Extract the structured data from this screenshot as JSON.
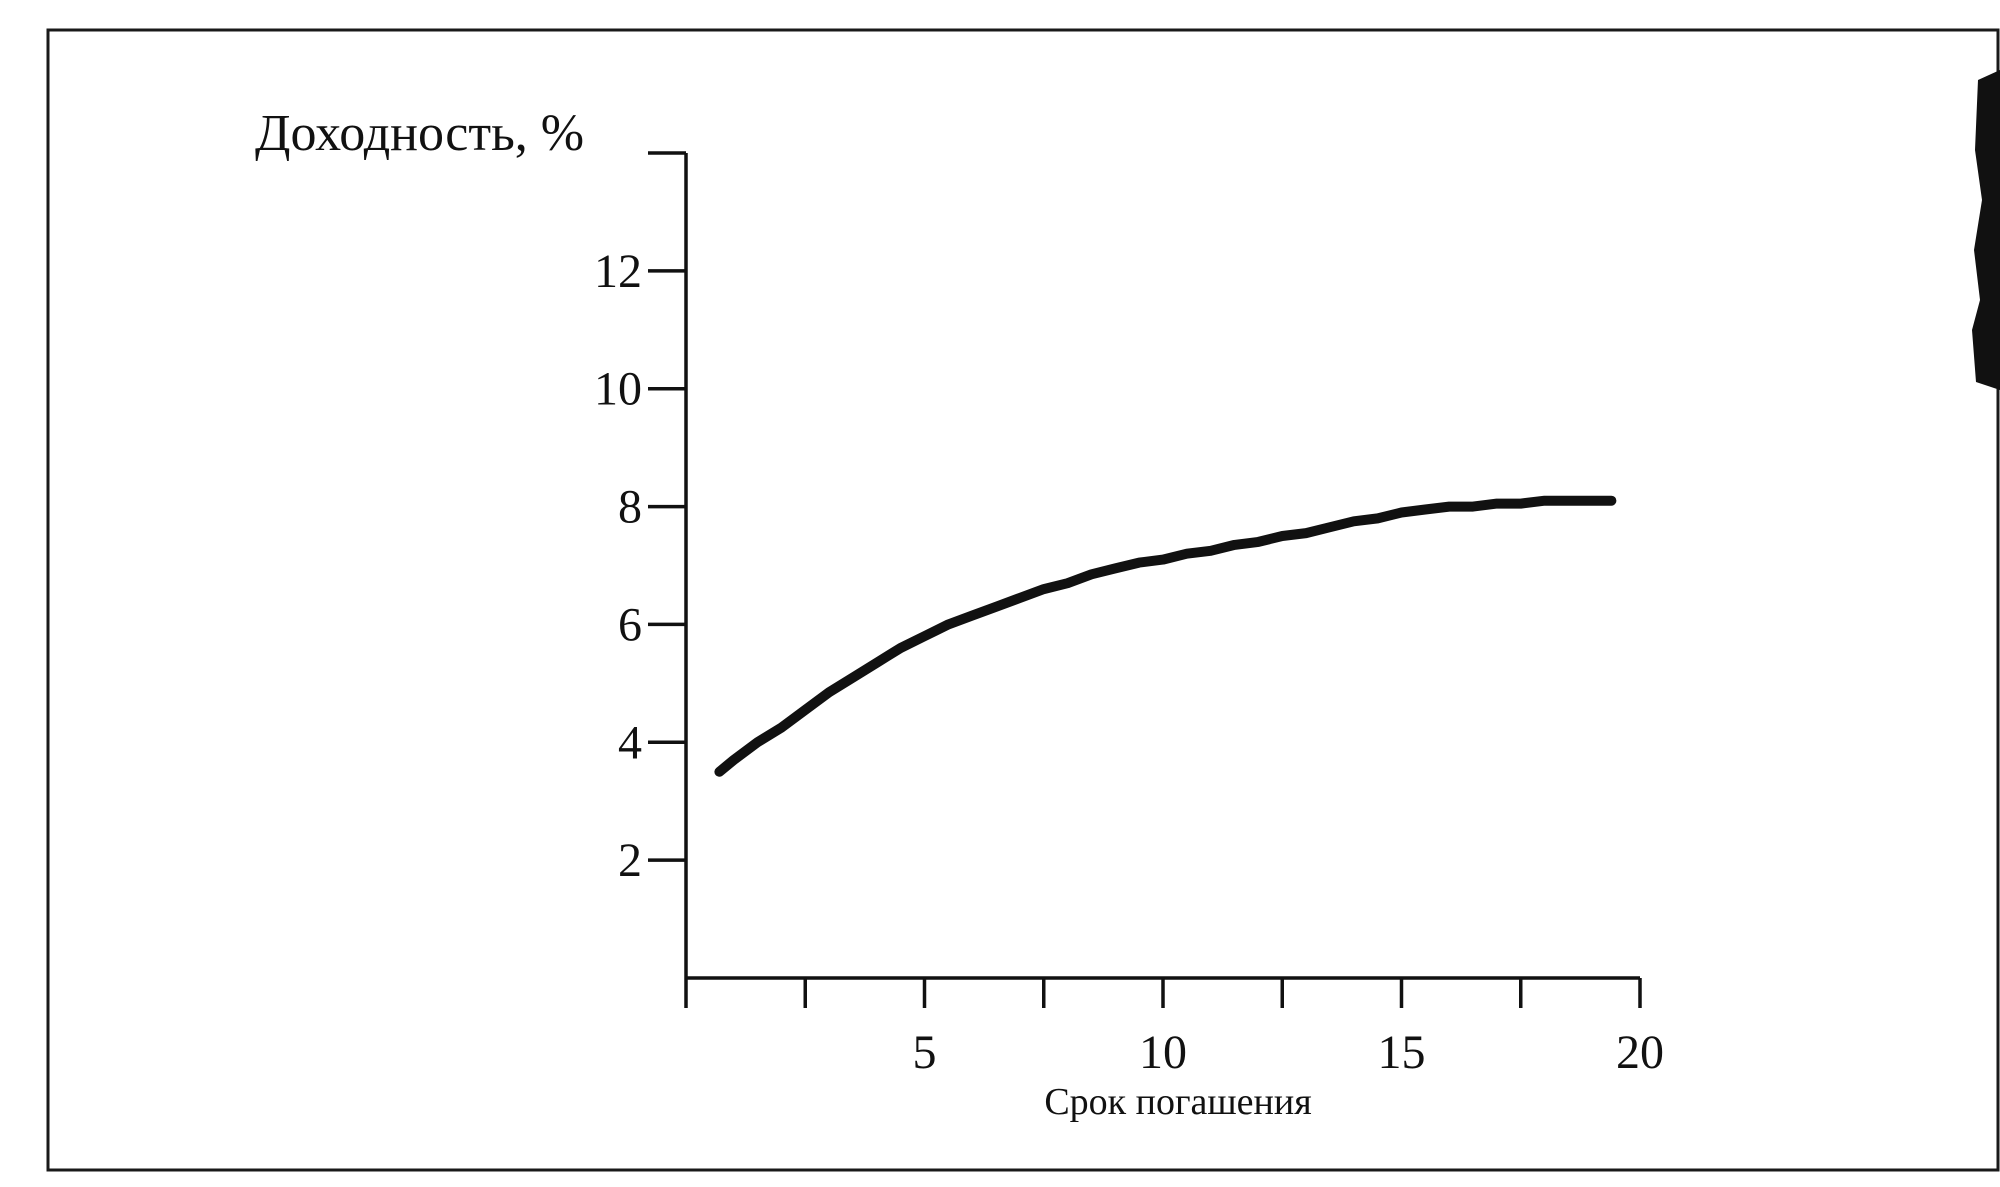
{
  "chart_data": {
    "type": "line",
    "ylabel": "Доходность, %",
    "xlabel": "Срок погашения",
    "xlim": [
      0,
      20
    ],
    "ylim": [
      0,
      14
    ],
    "x_ticks": [
      0,
      2.5,
      5,
      7.5,
      10,
      12.5,
      15,
      17.5,
      20
    ],
    "x_tick_labels": [
      {
        "value": 5,
        "label": "5"
      },
      {
        "value": 10,
        "label": "10"
      },
      {
        "value": 15,
        "label": "15"
      },
      {
        "value": 20,
        "label": "20"
      }
    ],
    "y_ticks": [
      2,
      4,
      6,
      8,
      10,
      12,
      14
    ],
    "y_tick_labels": [
      {
        "value": 2,
        "label": "2"
      },
      {
        "value": 4,
        "label": "4"
      },
      {
        "value": 6,
        "label": "6"
      },
      {
        "value": 8,
        "label": "8"
      },
      {
        "value": 10,
        "label": "10"
      },
      {
        "value": 12,
        "label": "12"
      }
    ],
    "grid": false,
    "series": [
      {
        "x": [
          0.7,
          1,
          1.5,
          2,
          2.5,
          3,
          3.5,
          4,
          4.5,
          5,
          5.5,
          6,
          6.5,
          7,
          7.5,
          8,
          8.5,
          9,
          9.5,
          10,
          10.5,
          11,
          11.5,
          12,
          12.5,
          13,
          13.5,
          14,
          14.5,
          15,
          15.5,
          16,
          16.5,
          17,
          17.5,
          18,
          18.5,
          19,
          19.4
        ],
        "y": [
          3.5,
          3.7,
          4.0,
          4.25,
          4.55,
          4.85,
          5.1,
          5.35,
          5.6,
          5.8,
          6.0,
          6.15,
          6.3,
          6.45,
          6.6,
          6.7,
          6.85,
          6.95,
          7.05,
          7.1,
          7.2,
          7.25,
          7.35,
          7.4,
          7.5,
          7.55,
          7.65,
          7.75,
          7.8,
          7.9,
          7.95,
          8.0,
          8.0,
          8.05,
          8.05,
          8.1,
          8.1,
          8.1,
          8.1
        ]
      }
    ],
    "colors": {
      "line": "#111111",
      "axis": "#111111",
      "frame": "#1a1a1a",
      "background": "#ffffff"
    }
  }
}
